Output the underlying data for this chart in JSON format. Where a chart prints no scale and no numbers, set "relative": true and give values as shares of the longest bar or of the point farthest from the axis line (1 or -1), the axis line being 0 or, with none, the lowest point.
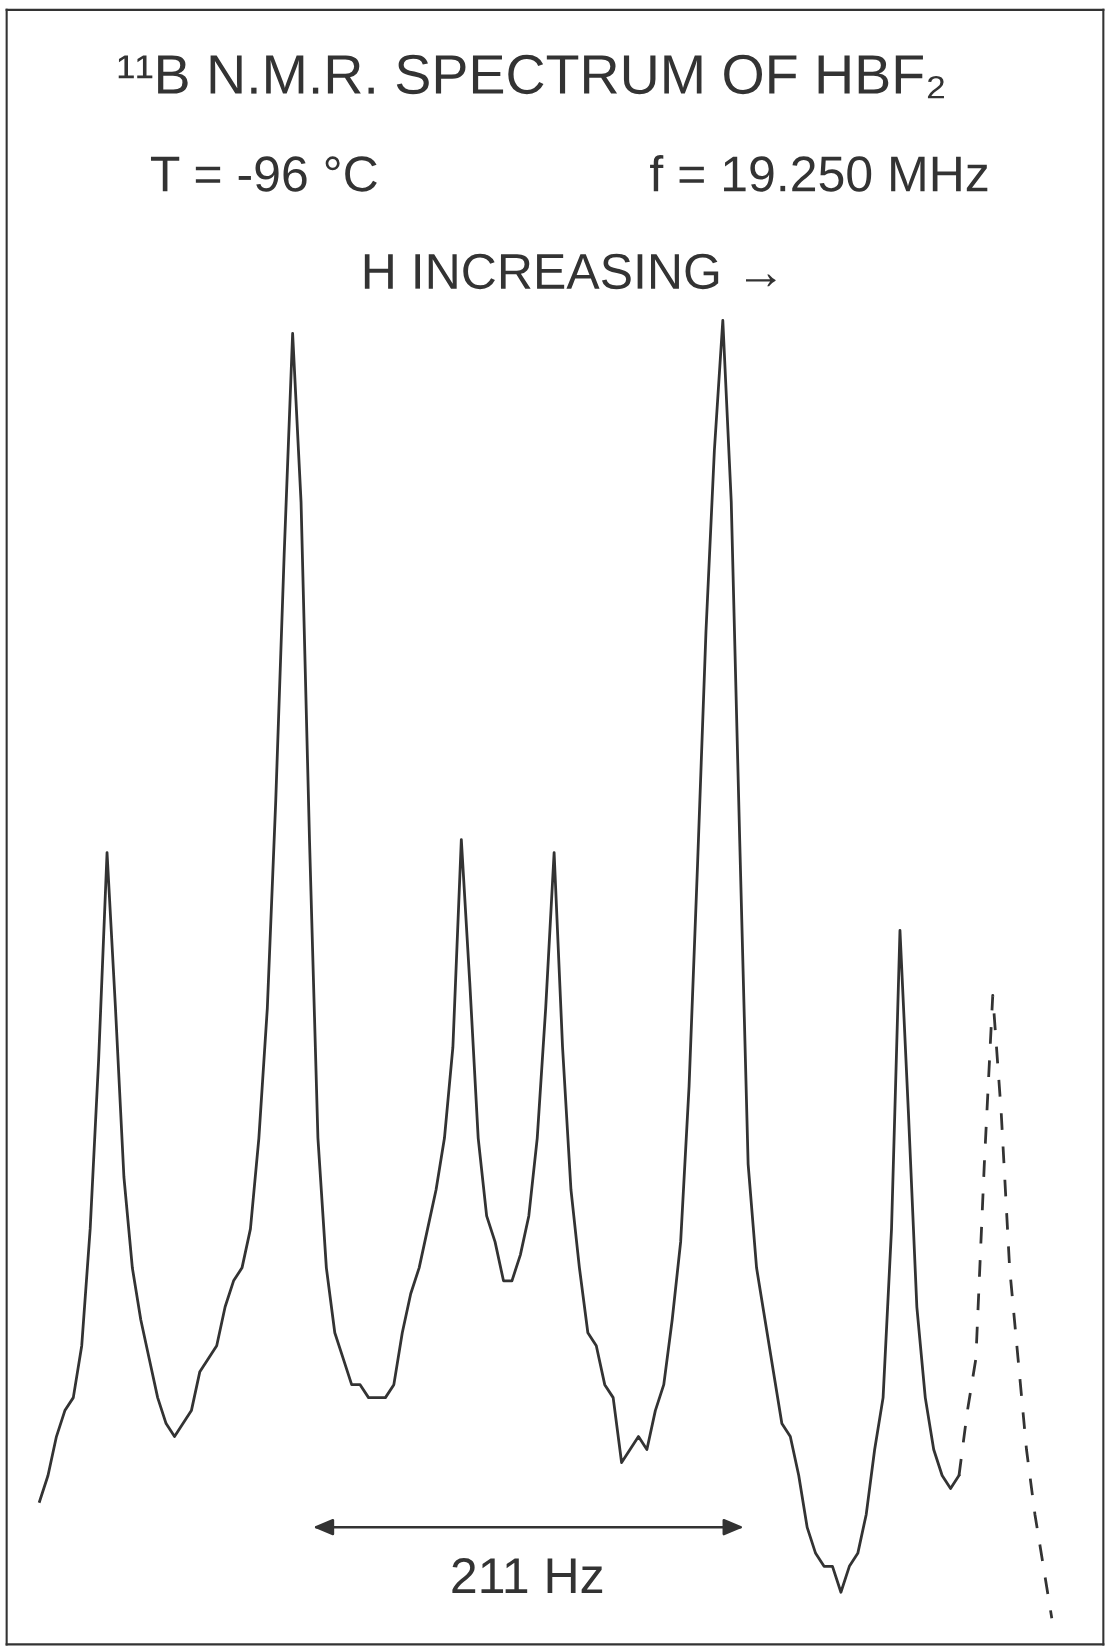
{
  "chart_data": {
    "type": "line",
    "relative": true,
    "title": "¹¹B N.M.R. SPECTRUM OF HBF₂",
    "subtitle": "T = -96 °C",
    "annotations": [
      "f = 19.250 MHz",
      "H INCREASING →",
      "211 Hz"
    ],
    "marker": "none",
    "categories": [
      null,
      null,
      null,
      null,
      null,
      null,
      null,
      null,
      null,
      null,
      null,
      null,
      null,
      null,
      null,
      null,
      null,
      null,
      null,
      null,
      null,
      null,
      null,
      null,
      null,
      null,
      null,
      null,
      null,
      null,
      null,
      null,
      null,
      null,
      null,
      null,
      null,
      null,
      null,
      null,
      null,
      null,
      null,
      null,
      null,
      null,
      null,
      null,
      null,
      null,
      null,
      null,
      null,
      null,
      null,
      null,
      null,
      null,
      null,
      null,
      null,
      null,
      null,
      null,
      null,
      null,
      null,
      null,
      null,
      null,
      null,
      null,
      null,
      null,
      null,
      null,
      null,
      null,
      null,
      null,
      null,
      null,
      null,
      null,
      null,
      null,
      null,
      null,
      null,
      null,
      null,
      null,
      null,
      null,
      null,
      null,
      null,
      null,
      null,
      null,
      null,
      null,
      null,
      null,
      null,
      null,
      null,
      null,
      null,
      null,
      null,
      null,
      null,
      null,
      null,
      null,
      null,
      null,
      null,
      null,
      null
    ],
    "series": [
      {
        "color": "#333333",
        "line_style": "solid",
        "values": [
          0.09,
          0.11,
          0.14,
          0.16,
          0.17,
          0.21,
          0.3,
          0.43,
          0.59,
          0.47,
          0.34,
          0.27,
          0.23,
          0.2,
          0.17,
          0.15,
          0.14,
          0.15,
          0.16,
          0.19,
          0.2,
          0.21,
          0.24,
          0.26,
          0.27,
          0.3,
          0.37,
          0.47,
          0.63,
          0.82,
          0.99,
          0.86,
          0.6,
          0.37,
          0.27,
          0.22,
          0.2,
          0.18,
          0.18,
          0.17,
          0.17,
          0.17,
          0.18,
          0.22,
          0.25,
          0.27,
          0.3,
          0.33,
          0.37,
          0.44,
          0.6,
          0.49,
          0.37,
          0.31,
          0.29,
          0.26,
          0.26,
          0.28,
          0.31,
          0.37,
          0.47,
          0.59,
          0.44,
          0.33,
          0.27,
          0.22,
          0.21,
          0.18,
          0.17,
          0.12,
          0.13,
          0.14,
          0.13,
          0.16,
          0.18,
          0.23,
          0.29,
          0.41,
          0.58,
          0.76,
          0.9,
          1.0,
          0.86,
          0.6,
          0.35,
          0.27,
          0.23,
          0.19,
          0.15,
          0.14,
          0.11,
          0.07,
          0.05,
          0.04,
          0.04,
          0.02,
          0.04,
          0.05,
          0.08,
          0.13,
          0.17,
          0.3,
          0.53,
          0.39,
          0.24,
          0.17,
          0.13,
          0.11,
          0.1,
          0.11,
          null,
          null,
          null,
          null,
          null,
          null,
          null,
          null,
          null,
          null,
          null
        ]
      },
      {
        "color": "#333333",
        "line_style": "dashed",
        "values": [
          null,
          null,
          null,
          null,
          null,
          null,
          null,
          null,
          null,
          null,
          null,
          null,
          null,
          null,
          null,
          null,
          null,
          null,
          null,
          null,
          null,
          null,
          null,
          null,
          null,
          null,
          null,
          null,
          null,
          null,
          null,
          null,
          null,
          null,
          null,
          null,
          null,
          null,
          null,
          null,
          null,
          null,
          null,
          null,
          null,
          null,
          null,
          null,
          null,
          null,
          null,
          null,
          null,
          null,
          null,
          null,
          null,
          null,
          null,
          null,
          null,
          null,
          null,
          null,
          null,
          null,
          null,
          null,
          null,
          null,
          null,
          null,
          null,
          null,
          null,
          null,
          null,
          null,
          null,
          null,
          null,
          null,
          null,
          null,
          null,
          null,
          null,
          null,
          null,
          null,
          null,
          null,
          null,
          null,
          null,
          null,
          null,
          null,
          null,
          null,
          null,
          null,
          null,
          null,
          null,
          null,
          null,
          null,
          null,
          0.11,
          0.16,
          0.2,
          0.35,
          0.48,
          0.39,
          0.27,
          0.2,
          0.13,
          0.08,
          0.04,
          0
        ]
      }
    ]
  }
}
